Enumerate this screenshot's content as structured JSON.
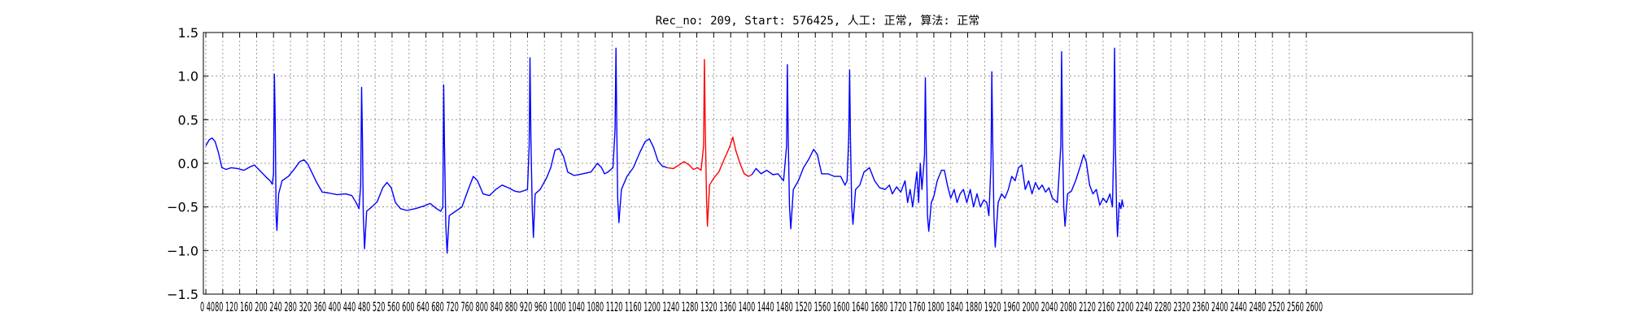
{
  "chart_data": {
    "type": "line",
    "title": "Rec_no: 209, Start: 576425, 人工: 正常, 算法: 正常",
    "xlabel": "",
    "ylabel": "",
    "xlim": [
      0,
      3000
    ],
    "ylim": [
      -1.5,
      1.5
    ],
    "grid": true,
    "y_ticks": [
      1.5,
      1.0,
      0.5,
      0.0,
      -0.5,
      -1.0,
      -1.5
    ],
    "y_tick_labels": [
      "1.5",
      "1.0",
      "0.5",
      "0.0",
      "−0.5",
      "−1.0",
      "−1.5"
    ],
    "x_ticks": [
      0,
      40,
      80,
      120,
      160,
      200,
      240,
      280,
      320,
      360,
      400,
      440,
      480,
      520,
      560,
      600,
      640,
      680,
      720,
      760,
      800,
      840,
      880,
      920,
      960,
      1000,
      1040,
      1080,
      1120,
      1160,
      1200,
      1240,
      1280,
      1320,
      1360,
      1400,
      1440,
      1480,
      1520,
      1560,
      1600,
      1640,
      1680,
      1720,
      1760,
      1800,
      1840,
      1880,
      1920,
      1960,
      2000,
      2040,
      2080,
      2120,
      2160,
      2200,
      2240,
      2280,
      2320,
      2360,
      2400,
      2440,
      2480,
      2520,
      2560,
      2600
    ],
    "x_tick_labels_text": "0 4080 120 160 200 240 280 320 360 400 440 480 520 560 600 640 680 720 760 800 840 880 920 960 1000 1040 1080 1120 1160 1200 1240 1280 1320 1360 1400 1440 1480 1520 1560 1600 1640 1680 1720 1760 1800 1840 1880 1920 1960 2000 2040 2080 2120 2160 2200 2240 2280 2320 2360 2400 2440 2480 2520 2560 2600",
    "series": [
      {
        "color": "#0000ff",
        "segment": "before",
        "points": [
          [
            0,
            0.2
          ],
          [
            8,
            0.27
          ],
          [
            15,
            0.29
          ],
          [
            22,
            0.25
          ],
          [
            30,
            0.12
          ],
          [
            38,
            -0.05
          ],
          [
            48,
            -0.07
          ],
          [
            60,
            -0.05
          ],
          [
            75,
            -0.06
          ],
          [
            90,
            -0.08
          ],
          [
            105,
            -0.04
          ],
          [
            115,
            -0.02
          ],
          [
            125,
            -0.07
          ],
          [
            135,
            -0.12
          ],
          [
            145,
            -0.17
          ],
          [
            152,
            -0.2
          ],
          [
            157,
            -0.24
          ],
          [
            160,
            -0.12
          ],
          [
            162,
            1.02
          ],
          [
            164,
            0.5
          ],
          [
            166,
            -0.6
          ],
          [
            168,
            -0.77
          ],
          [
            172,
            -0.35
          ],
          [
            180,
            -0.2
          ],
          [
            195,
            -0.15
          ],
          [
            210,
            -0.06
          ],
          [
            222,
            0.02
          ],
          [
            232,
            0.04
          ],
          [
            240,
            0.0
          ],
          [
            250,
            -0.1
          ],
          [
            262,
            -0.22
          ],
          [
            275,
            -0.33
          ],
          [
            290,
            -0.34
          ],
          [
            310,
            -0.36
          ],
          [
            330,
            -0.35
          ],
          [
            345,
            -0.37
          ],
          [
            355,
            -0.45
          ],
          [
            362,
            -0.52
          ],
          [
            366,
            -0.25
          ],
          [
            368,
            0.87
          ],
          [
            370,
            0.3
          ],
          [
            372,
            -0.6
          ],
          [
            375,
            -0.98
          ],
          [
            380,
            -0.55
          ],
          [
            392,
            -0.5
          ],
          [
            405,
            -0.44
          ],
          [
            418,
            -0.28
          ],
          [
            428,
            -0.22
          ],
          [
            438,
            -0.28
          ],
          [
            448,
            -0.45
          ],
          [
            460,
            -0.52
          ],
          [
            475,
            -0.54
          ],
          [
            495,
            -0.52
          ],
          [
            515,
            -0.49
          ],
          [
            530,
            -0.46
          ],
          [
            545,
            -0.52
          ],
          [
            555,
            -0.55
          ],
          [
            560,
            -0.5
          ],
          [
            562,
            0.9
          ],
          [
            564,
            0.2
          ],
          [
            567,
            -0.7
          ],
          [
            570,
            -1.03
          ],
          [
            575,
            -0.6
          ],
          [
            590,
            -0.55
          ],
          [
            605,
            -0.5
          ],
          [
            620,
            -0.3
          ],
          [
            632,
            -0.15
          ],
          [
            642,
            -0.2
          ],
          [
            655,
            -0.35
          ],
          [
            670,
            -0.37
          ],
          [
            685,
            -0.3
          ],
          [
            700,
            -0.25
          ],
          [
            715,
            -0.28
          ],
          [
            730,
            -0.32
          ],
          [
            742,
            -0.33
          ],
          [
            760,
            -0.3
          ],
          [
            764,
            0.2
          ],
          [
            766,
            1.21
          ],
          [
            768,
            0.3
          ],
          [
            771,
            -0.5
          ],
          [
            774,
            -0.85
          ],
          [
            778,
            -0.35
          ],
          [
            790,
            -0.3
          ],
          [
            805,
            -0.17
          ],
          [
            815,
            -0.05
          ],
          [
            825,
            0.15
          ],
          [
            835,
            0.17
          ],
          [
            845,
            0.08
          ],
          [
            855,
            -0.1
          ],
          [
            870,
            -0.14
          ],
          [
            890,
            -0.12
          ],
          [
            910,
            -0.1
          ],
          [
            925,
            0.0
          ],
          [
            935,
            -0.05
          ],
          [
            942,
            -0.12
          ],
          [
            950,
            -0.1
          ],
          [
            962,
            -0.05
          ],
          [
            967,
            0.4
          ],
          [
            969,
            1.32
          ],
          [
            971,
            0.4
          ],
          [
            973,
            -0.4
          ],
          [
            976,
            -0.68
          ],
          [
            982,
            -0.3
          ],
          [
            995,
            -0.15
          ],
          [
            1010,
            -0.05
          ],
          [
            1025,
            0.12
          ],
          [
            1038,
            0.25
          ],
          [
            1048,
            0.28
          ],
          [
            1058,
            0.18
          ],
          [
            1068,
            0.03
          ],
          [
            1078,
            -0.03
          ],
          [
            1090,
            -0.05
          ]
        ]
      },
      {
        "color": "#ff0000",
        "segment": "highlighted_beat",
        "points": [
          [
            1090,
            -0.05
          ],
          [
            1105,
            -0.06
          ],
          [
            1118,
            -0.02
          ],
          [
            1130,
            0.02
          ],
          [
            1142,
            -0.02
          ],
          [
            1152,
            -0.07
          ],
          [
            1162,
            -0.05
          ],
          [
            1170,
            -0.08
          ],
          [
            1176,
            0.2
          ],
          [
            1178,
            1.19
          ],
          [
            1180,
            0.4
          ],
          [
            1183,
            -0.4
          ],
          [
            1185,
            -0.72
          ],
          [
            1190,
            -0.25
          ],
          [
            1200,
            -0.17
          ],
          [
            1212,
            -0.1
          ],
          [
            1225,
            0.05
          ],
          [
            1237,
            0.18
          ],
          [
            1245,
            0.3
          ],
          [
            1252,
            0.15
          ],
          [
            1262,
            0.0
          ],
          [
            1272,
            -0.12
          ],
          [
            1282,
            -0.15
          ],
          [
            1290,
            -0.13
          ]
        ]
      },
      {
        "color": "#0000ff",
        "segment": "after",
        "points": [
          [
            1290,
            -0.13
          ],
          [
            1300,
            -0.06
          ],
          [
            1312,
            -0.12
          ],
          [
            1325,
            -0.08
          ],
          [
            1340,
            -0.13
          ],
          [
            1352,
            -0.12
          ],
          [
            1365,
            -0.2
          ],
          [
            1372,
            0.2
          ],
          [
            1374,
            1.13
          ],
          [
            1376,
            0.3
          ],
          [
            1379,
            -0.5
          ],
          [
            1382,
            -0.75
          ],
          [
            1388,
            -0.3
          ],
          [
            1400,
            -0.2
          ],
          [
            1412,
            -0.05
          ],
          [
            1425,
            0.05
          ],
          [
            1436,
            0.16
          ],
          [
            1445,
            0.1
          ],
          [
            1455,
            -0.12
          ],
          [
            1470,
            -0.12
          ],
          [
            1485,
            -0.15
          ],
          [
            1500,
            -0.15
          ],
          [
            1510,
            -0.25
          ],
          [
            1515,
            -0.2
          ],
          [
            1519,
            0.3
          ],
          [
            1521,
            1.07
          ],
          [
            1523,
            0.3
          ],
          [
            1526,
            -0.5
          ],
          [
            1529,
            -0.7
          ],
          [
            1535,
            -0.3
          ],
          [
            1545,
            -0.25
          ],
          [
            1555,
            -0.1
          ],
          [
            1568,
            -0.05
          ],
          [
            1580,
            -0.2
          ],
          [
            1592,
            -0.28
          ],
          [
            1605,
            -0.3
          ],
          [
            1615,
            -0.25
          ],
          [
            1622,
            -0.35
          ],
          [
            1632,
            -0.27
          ],
          [
            1642,
            -0.33
          ],
          [
            1652,
            -0.2
          ],
          [
            1658,
            -0.45
          ],
          [
            1664,
            -0.3
          ],
          [
            1670,
            -0.5
          ],
          [
            1675,
            -0.3
          ],
          [
            1680,
            -0.1
          ],
          [
            1684,
            -0.45
          ],
          [
            1688,
            0.0
          ],
          [
            1692,
            -0.3
          ],
          [
            1698,
            0.1
          ],
          [
            1700,
            0.98
          ],
          [
            1702,
            0.2
          ],
          [
            1705,
            -0.6
          ],
          [
            1708,
            -0.78
          ],
          [
            1714,
            -0.45
          ],
          [
            1720,
            -0.38
          ],
          [
            1728,
            -0.2
          ],
          [
            1738,
            -0.08
          ],
          [
            1745,
            -0.08
          ],
          [
            1752,
            -0.25
          ],
          [
            1760,
            -0.4
          ],
          [
            1768,
            -0.3
          ],
          [
            1775,
            -0.45
          ],
          [
            1782,
            -0.35
          ],
          [
            1790,
            -0.3
          ],
          [
            1798,
            -0.45
          ],
          [
            1806,
            -0.3
          ],
          [
            1814,
            -0.5
          ],
          [
            1822,
            -0.35
          ],
          [
            1830,
            -0.5
          ],
          [
            1838,
            -0.42
          ],
          [
            1845,
            -0.45
          ],
          [
            1850,
            -0.6
          ],
          [
            1855,
            0.0
          ],
          [
            1857,
            1.05
          ],
          [
            1859,
            0.3
          ],
          [
            1862,
            -0.6
          ],
          [
            1865,
            -0.96
          ],
          [
            1872,
            -0.45
          ],
          [
            1880,
            -0.35
          ],
          [
            1888,
            -0.4
          ],
          [
            1896,
            -0.3
          ],
          [
            1904,
            -0.15
          ],
          [
            1912,
            -0.2
          ],
          [
            1920,
            -0.05
          ],
          [
            1928,
            -0.02
          ],
          [
            1936,
            -0.3
          ],
          [
            1944,
            -0.2
          ],
          [
            1952,
            -0.35
          ],
          [
            1960,
            -0.22
          ],
          [
            1968,
            -0.3
          ],
          [
            1976,
            -0.25
          ],
          [
            1984,
            -0.33
          ],
          [
            1992,
            -0.28
          ],
          [
            2000,
            -0.4
          ],
          [
            2012,
            -0.45
          ],
          [
            2020,
            0.2
          ],
          [
            2022,
            1.28
          ],
          [
            2024,
            0.3
          ],
          [
            2027,
            -0.5
          ],
          [
            2030,
            -0.72
          ],
          [
            2036,
            -0.35
          ],
          [
            2045,
            -0.32
          ],
          [
            2055,
            -0.2
          ],
          [
            2065,
            -0.05
          ],
          [
            2074,
            0.1
          ],
          [
            2080,
            0.02
          ],
          [
            2088,
            -0.25
          ],
          [
            2096,
            -0.35
          ],
          [
            2104,
            -0.3
          ],
          [
            2112,
            -0.48
          ],
          [
            2120,
            -0.4
          ],
          [
            2128,
            -0.45
          ],
          [
            2136,
            -0.35
          ],
          [
            2142,
            -0.5
          ],
          [
            2145,
            0.2
          ],
          [
            2147,
            1.32
          ],
          [
            2149,
            0.2
          ],
          [
            2152,
            -0.6
          ],
          [
            2154,
            -0.84
          ],
          [
            2158,
            -0.45
          ],
          [
            2162,
            -0.52
          ],
          [
            2165,
            -0.42
          ],
          [
            2168,
            -0.5
          ]
        ]
      }
    ]
  }
}
